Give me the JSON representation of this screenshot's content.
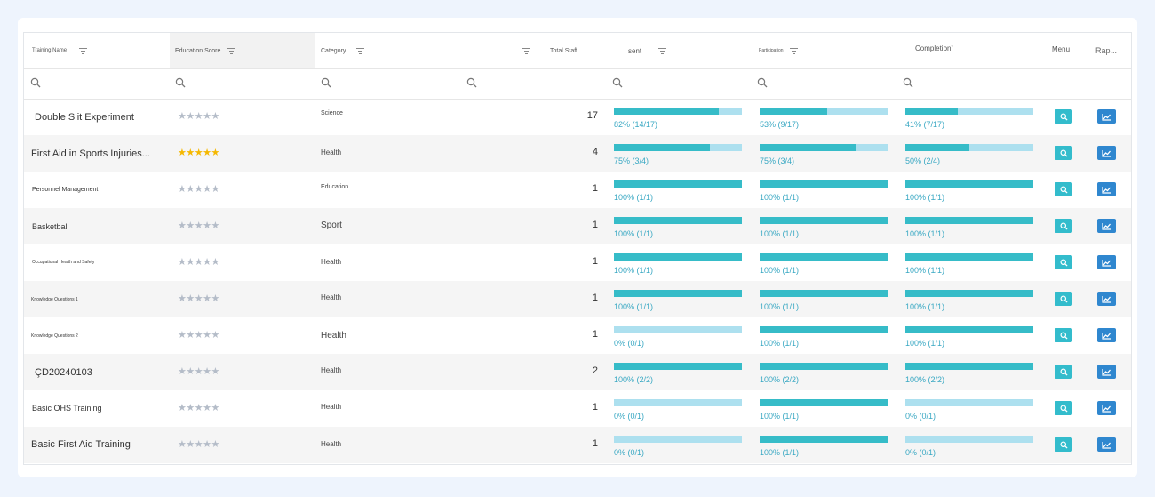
{
  "colors": {
    "accent": "#36bcc8",
    "track": "#ade0ef",
    "pct_text": "#39a8c3",
    "report_btn": "#2f87cf",
    "star_gold": "#f5b800",
    "star_empty": "#b4bcc8"
  },
  "header": {
    "training_name": "Training Name",
    "education_score": "Education Score",
    "category": "Category",
    "total_staff": "Total Staff",
    "sent": "sent",
    "participation": "Participation",
    "completion": "Completion",
    "completion_mark": "*",
    "menu": "Menu",
    "report": "Rap..."
  },
  "filter_icons": [
    "search-icon",
    "search-icon",
    "search-icon",
    "search-icon",
    "search-icon",
    "search-icon",
    "search-icon"
  ],
  "rows": [
    {
      "name": "Double Slit Experiment",
      "rating": 0,
      "category": "Science",
      "staff": "17",
      "sent": {
        "value": 0.82,
        "label": "82% (14/17)"
      },
      "participation": {
        "value": 0.53,
        "label": "53% (9/17)"
      },
      "completion": {
        "value": 0.41,
        "label": "41% (7/17)"
      }
    },
    {
      "name": "First Aid in Sports Injuries...",
      "rating": 5,
      "category": "Health",
      "staff": "4",
      "sent": {
        "value": 0.75,
        "label": "75% (3/4)"
      },
      "participation": {
        "value": 0.75,
        "label": "75% (3/4)"
      },
      "completion": {
        "value": 0.5,
        "label": "50% (2/4)"
      }
    },
    {
      "name": "Personnel Management",
      "rating": 0,
      "category": "Education",
      "staff": "1",
      "sent": {
        "value": 1,
        "label": "100% (1/1)"
      },
      "participation": {
        "value": 1,
        "label": "100% (1/1)"
      },
      "completion": {
        "value": 1,
        "label": "100% (1/1)"
      }
    },
    {
      "name": "Basketball",
      "rating": 0,
      "category": "Sport",
      "staff": "1",
      "sent": {
        "value": 1,
        "label": "100% (1/1)"
      },
      "participation": {
        "value": 1,
        "label": "100% (1/1)"
      },
      "completion": {
        "value": 1,
        "label": "100% (1/1)"
      }
    },
    {
      "name": "Occupational Health and Safety",
      "rating": 0,
      "category": "Health",
      "staff": "1",
      "sent": {
        "value": 1,
        "label": "100% (1/1)"
      },
      "participation": {
        "value": 1,
        "label": "100% (1/1)"
      },
      "completion": {
        "value": 1,
        "label": "100% (1/1)"
      }
    },
    {
      "name": "Knowledge Questions 1",
      "rating": 0,
      "category": "Health",
      "staff": "1",
      "sent": {
        "value": 1,
        "label": "100% (1/1)"
      },
      "participation": {
        "value": 1,
        "label": "100% (1/1)"
      },
      "completion": {
        "value": 1,
        "label": "100% (1/1)"
      }
    },
    {
      "name": "Knowledge Questions 2",
      "rating": 0,
      "category": "Health",
      "staff": "1",
      "sent": {
        "value": 0,
        "label": "0% (0/1)"
      },
      "participation": {
        "value": 1,
        "label": "100% (1/1)"
      },
      "completion": {
        "value": 1,
        "label": "100% (1/1)"
      }
    },
    {
      "name": "ÇD20240103",
      "rating": 0,
      "category": "Health",
      "staff": "2",
      "sent": {
        "value": 1,
        "label": "100% (2/2)"
      },
      "participation": {
        "value": 1,
        "label": "100% (2/2)"
      },
      "completion": {
        "value": 1,
        "label": "100% (2/2)"
      }
    },
    {
      "name": "Basic OHS Training",
      "rating": 0,
      "category": "Health",
      "staff": "1",
      "sent": {
        "value": 0,
        "label": "0% (0/1)"
      },
      "participation": {
        "value": 1,
        "label": "100% (1/1)"
      },
      "completion": {
        "value": 0,
        "label": "0% (0/1)"
      }
    },
    {
      "name": "Basic First Aid Training",
      "rating": 0,
      "category": "Health",
      "staff": "1",
      "sent": {
        "value": 0,
        "label": "0% (0/1)"
      },
      "participation": {
        "value": 1,
        "label": "100% (1/1)"
      },
      "completion": {
        "value": 0,
        "label": "0% (0/1)"
      }
    }
  ]
}
